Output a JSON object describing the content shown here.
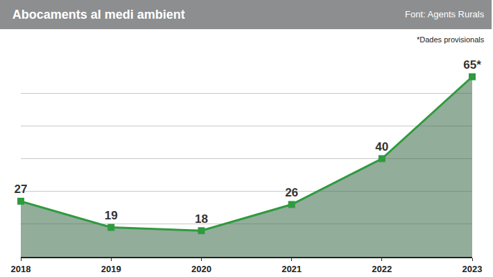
{
  "chart_data": {
    "type": "line",
    "title": "Abocaments al medi ambient",
    "source": "Font: Agents Rurals",
    "note": "*Dades provisionals",
    "categories": [
      "2018",
      "2019",
      "2020",
      "2021",
      "2022",
      "2023"
    ],
    "values": [
      27,
      19,
      18,
      26,
      40,
      65
    ],
    "value_labels": [
      "27",
      "19",
      "18",
      "26",
      "40",
      "65*"
    ],
    "data_labels": true,
    "color": "#2f9a3f",
    "marker": "square",
    "ylim": [
      10,
      70
    ],
    "yticks": [
      10,
      20,
      30,
      40,
      50,
      60,
      70
    ],
    "grid": true,
    "tick_labels": "x"
  }
}
